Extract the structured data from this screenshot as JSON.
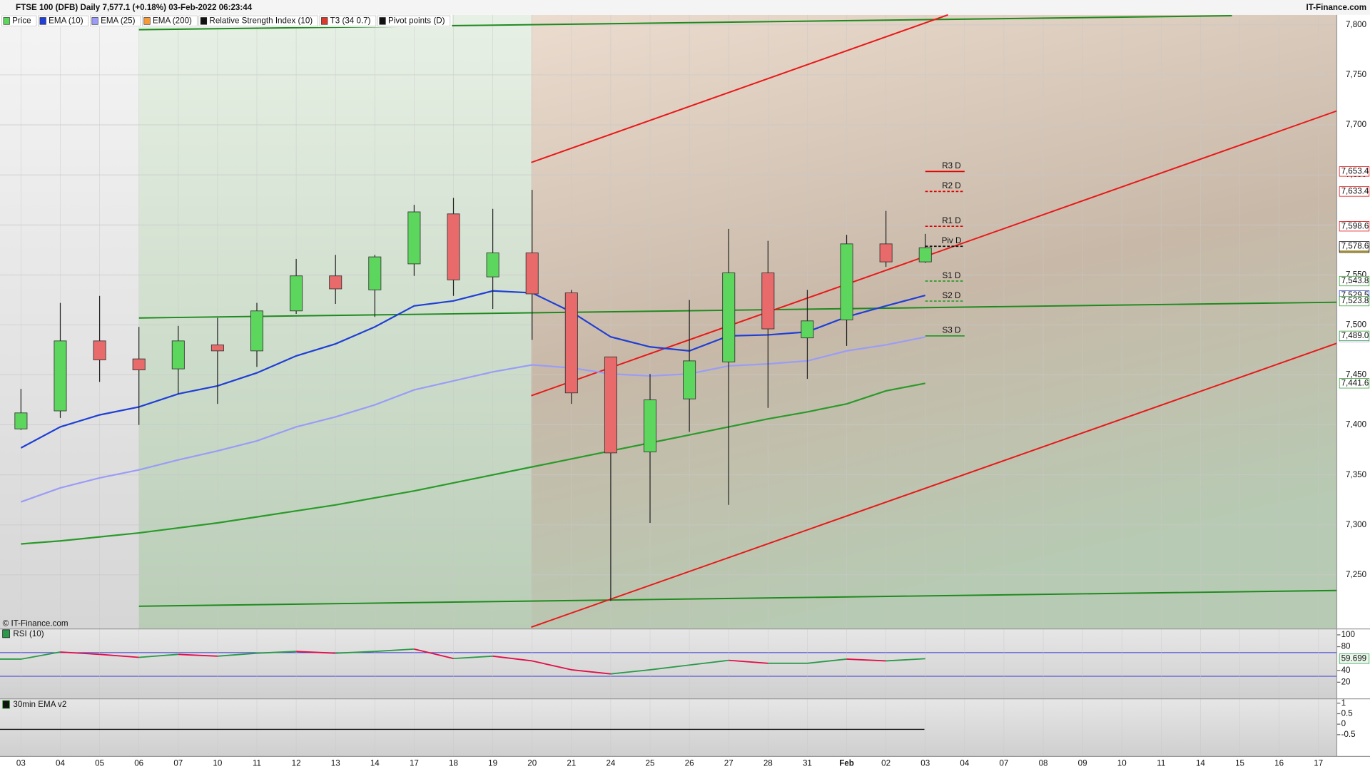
{
  "chart_data": {
    "type": "candlestick",
    "title": "FTSE 100 (DFB) Daily 7,577.1 (+0.18%) 03-Feb-2022 06:23:44",
    "source": "IT-Finance.com",
    "copyright": "© IT-Finance.com",
    "legend": [
      {
        "name": "Price",
        "color": "#5cd65c"
      },
      {
        "name": "EMA (10)",
        "color": "#1f3fd6"
      },
      {
        "name": "EMA (25)",
        "color": "#9a9cf7"
      },
      {
        "name": "EMA (200)",
        "color": "#f39a3a"
      },
      {
        "name": "Relative Strength Index (10)",
        "color": "#111111"
      },
      {
        "name": "T3 (34 0.7)",
        "color": "#d83b2b"
      },
      {
        "name": "Pivot points (D)",
        "color": "#111111"
      }
    ],
    "categories": [
      "03",
      "04",
      "05",
      "06",
      "07",
      "10",
      "11",
      "12",
      "13",
      "14",
      "17",
      "18",
      "19",
      "20",
      "21",
      "24",
      "25",
      "26",
      "27",
      "28",
      "31",
      "Feb",
      "02",
      "03",
      "04",
      "07",
      "08",
      "09",
      "10",
      "11",
      "14",
      "15",
      "16",
      "17"
    ],
    "open": [
      7396,
      7414,
      7484,
      7466,
      7456,
      7480,
      7474,
      7514,
      7549,
      7535,
      7561,
      7611,
      7548,
      7572,
      7532,
      7468,
      7373,
      7426,
      7463,
      7552,
      7487,
      7505,
      7581,
      7563,
      null,
      null,
      null,
      null,
      null,
      null,
      null,
      null,
      null,
      null
    ],
    "high": [
      7436,
      7522,
      7529,
      7498,
      7499,
      7507,
      7522,
      7566,
      7570,
      7570,
      7620,
      7627,
      7616,
      7635,
      7535,
      7468,
      7451,
      7525,
      7596,
      7584,
      7535,
      7590,
      7614,
      7591,
      null,
      null,
      null,
      null,
      null,
      null,
      null,
      null,
      null,
      null
    ],
    "low": [
      7395,
      7407,
      7443,
      7400,
      7431,
      7421,
      7458,
      7511,
      7521,
      7508,
      7549,
      7529,
      7516,
      7485,
      7421,
      7224,
      7302,
      7393,
      7320,
      7417,
      7446,
      7479,
      7558,
      7562,
      null,
      null,
      null,
      null,
      null,
      null,
      null,
      null,
      null,
      null
    ],
    "close": [
      7412,
      7484,
      7465,
      7455,
      7484,
      7474,
      7514,
      7549,
      7536,
      7568,
      7613,
      7545,
      7572,
      7531,
      7432,
      7372,
      7425,
      7464,
      7552,
      7496,
      7504,
      7581,
      7563,
      7577.1,
      null,
      null,
      null,
      null,
      null,
      null,
      null,
      null,
      null,
      null
    ],
    "last_label": "7,577.1",
    "up_color": "#5cd65c",
    "down_color": "#e86a6a",
    "series": [
      {
        "color": "#1f3fd6",
        "last_label": "7,529.5",
        "values": [
          7377,
          7398,
          7410,
          7418,
          7431,
          7439,
          7452,
          7469,
          7481,
          7498,
          7519,
          7524,
          7534,
          7532,
          7513,
          7488,
          7478,
          7474,
          7489,
          7490,
          7493,
          7508,
          7519,
          7529.5,
          null,
          null,
          null,
          null,
          null,
          null,
          null,
          null,
          null,
          null
        ]
      },
      {
        "color": "#9a9cf7",
        "last_label": "7,487.9",
        "values": [
          7323,
          7337,
          7347,
          7355,
          7365,
          7374,
          7384,
          7398,
          7408,
          7420,
          7435,
          7444,
          7453,
          7460,
          7457,
          7451,
          7449,
          7451,
          7459,
          7461,
          7464,
          7474,
          7480,
          7487.9,
          null,
          null,
          null,
          null,
          null,
          null,
          null,
          null,
          null,
          null
        ]
      },
      {
        "color": "#2a9a2a",
        "last_label": "7,441.6",
        "values": [
          7281,
          7284,
          7288,
          7292,
          7297,
          7302,
          7308,
          7314,
          7320,
          7327,
          7334,
          7342,
          7350,
          7358,
          7366,
          7374,
          7382,
          7390,
          7398,
          7406,
          7413,
          7421,
          7434,
          7441.6,
          null,
          null,
          null,
          null,
          null,
          null,
          null,
          null,
          null,
          null
        ]
      }
    ],
    "ylim": [
      7196,
      7810
    ],
    "yticks": [
      {
        "value": 7250,
        "label": "7,250"
      },
      {
        "value": 7300,
        "label": "7,300"
      },
      {
        "value": 7350,
        "label": "7,350"
      },
      {
        "value": 7400,
        "label": "7,400"
      },
      {
        "value": 7450,
        "label": "7,450"
      },
      {
        "value": 7500,
        "label": "7,500"
      },
      {
        "value": 7550,
        "label": "7,550"
      },
      {
        "value": 7600,
        "label": "7,600"
      },
      {
        "value": 7650,
        "label": "7,650"
      },
      {
        "value": 7700,
        "label": "7,700"
      },
      {
        "value": 7750,
        "label": "7,750"
      },
      {
        "value": 7800,
        "label": "7,800"
      }
    ],
    "grid": true,
    "pivots": [
      {
        "label": "R3 D",
        "value": 7653.4,
        "value_label": "7,653.4",
        "color": "#e00000"
      },
      {
        "label": "R2 D",
        "value": 7633.4,
        "value_label": "7,633.4",
        "color": "#e00000"
      },
      {
        "label": "R1 D",
        "value": 7598.6,
        "value_label": "7,598.6",
        "color": "#e00000"
      },
      {
        "label": "Piv D",
        "value": 7578.6,
        "value_label": "7,578.6",
        "color": "#111111"
      },
      {
        "label": "S1 D",
        "value": 7543.8,
        "value_label": "7,543.8",
        "color": "#2a9a2a"
      },
      {
        "label": "S2 D",
        "value": 7523.8,
        "value_label": "7,523.8",
        "color": "#2a9a2a"
      },
      {
        "label": "S3 D",
        "value": 7489.0,
        "value_label": "7,489.0",
        "color": "#2a9a2a"
      }
    ],
    "rsi": {
      "title": "RSI (10)",
      "values": [
        59,
        71,
        67,
        62,
        67,
        64,
        69,
        72,
        69,
        72,
        76,
        60,
        64,
        56,
        41,
        34,
        41,
        49,
        57,
        52,
        52,
        59,
        56,
        59.699,
        null,
        null,
        null,
        null,
        null,
        null,
        null,
        null,
        null,
        null
      ],
      "last_label": "59.699",
      "ylim": [
        -8,
        110
      ],
      "yticks": [
        20,
        40,
        80,
        100
      ],
      "bands": [
        30,
        70
      ],
      "up_color": "#2a9a4a",
      "down_color": "#e0104a"
    },
    "lower": {
      "title": "30min EMA v2",
      "ylim": [
        -1.54,
        1.21
      ],
      "yticks": [
        1,
        0.5,
        0,
        -0.5
      ]
    }
  }
}
